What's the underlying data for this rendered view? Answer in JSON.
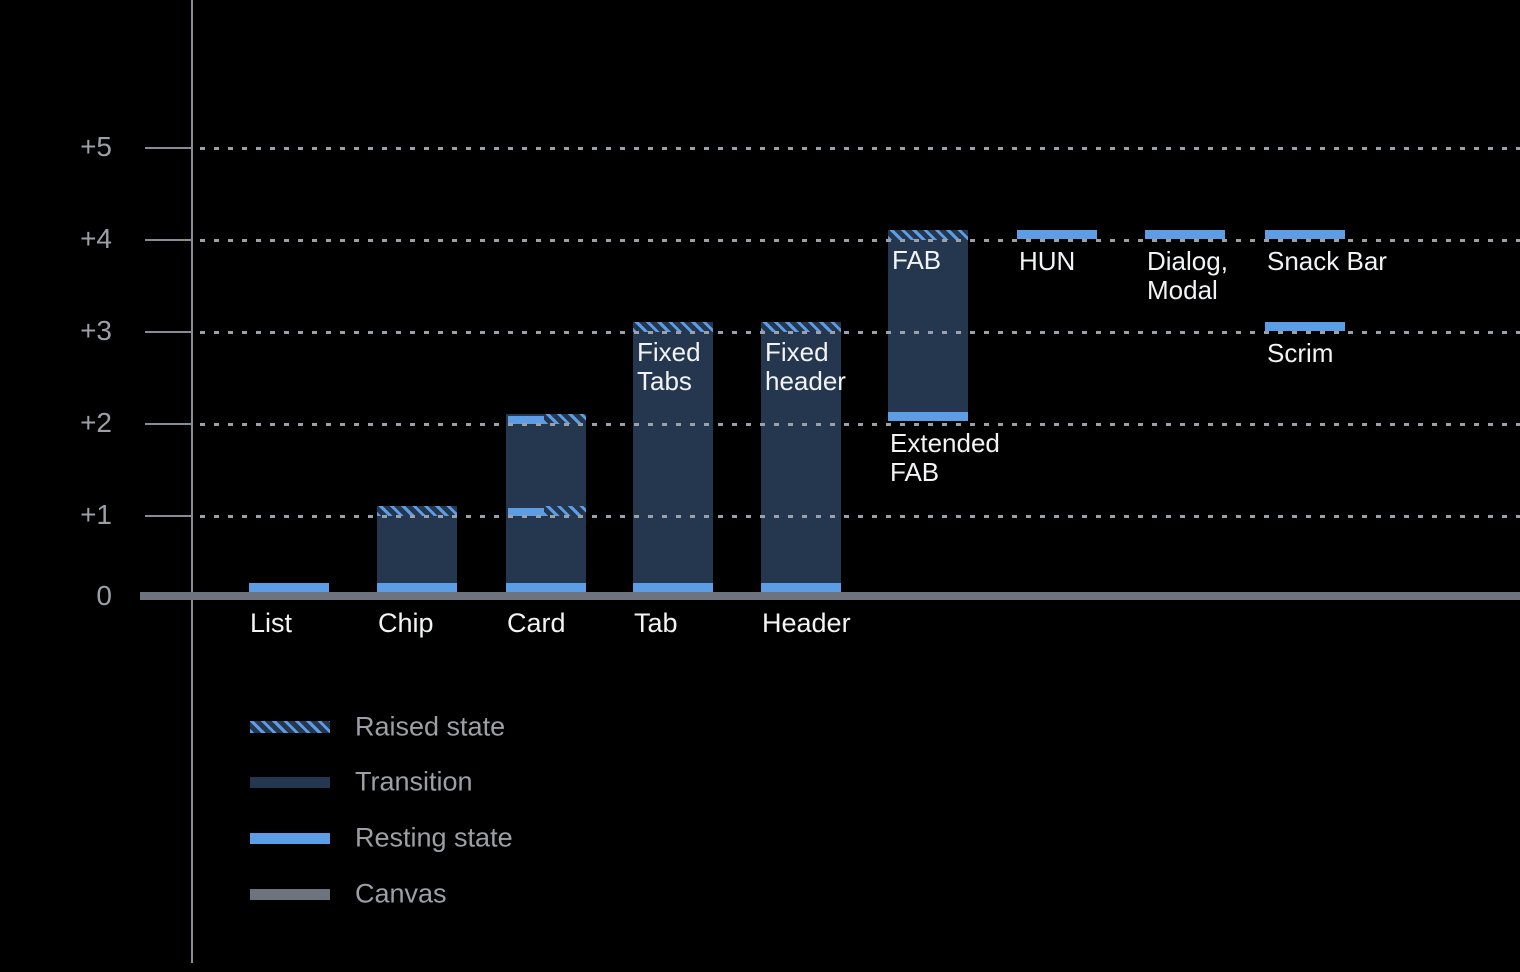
{
  "chart_data": {
    "type": "bar",
    "title": "",
    "description": "Material-style elevation chart: components vs elevation level, dark theme",
    "yticks": [
      "+5",
      "+4",
      "+3",
      "+2",
      "+1",
      "0"
    ],
    "ytick_values": [
      5,
      4,
      3,
      2,
      1,
      0
    ],
    "ylim": [
      0,
      5.5
    ],
    "grid": "dotted horizontal lines at +1 through +5",
    "legend_position": "bottom-left",
    "bars": [
      {
        "id": "list",
        "axis_label": "List",
        "type": "resting-only",
        "base": 0,
        "top": 0.1
      },
      {
        "id": "chip",
        "axis_label": "Chip",
        "type": "ground",
        "base": 0,
        "top": 1.1,
        "raised_band": true
      },
      {
        "id": "card",
        "axis_label": "Card",
        "type": "ground",
        "base": 0,
        "top": 2.1,
        "raised_band": false,
        "state_bands": [
          1.1,
          2.1
        ]
      },
      {
        "id": "tab",
        "axis_label": "Tab",
        "type": "ground",
        "base": 0,
        "top": 3.1,
        "raised_band": true,
        "inner_label": [
          "Fixed",
          "Tabs"
        ]
      },
      {
        "id": "header",
        "axis_label": "Header",
        "type": "ground",
        "base": 0,
        "top": 3.1,
        "raised_band": true,
        "inner_label": [
          "Fixed",
          "header"
        ]
      },
      {
        "id": "fab",
        "type": "floating",
        "base": 2.02,
        "top": 4.1,
        "raised_band": true,
        "inner_label": [
          "FAB"
        ],
        "below_label": [
          "Extended",
          "FAB"
        ]
      },
      {
        "id": "hun",
        "type": "band",
        "base": 4.0,
        "top": 4.1,
        "below_label": [
          "HUN"
        ]
      },
      {
        "id": "dialog",
        "type": "band",
        "base": 4.0,
        "top": 4.1,
        "below_label": [
          "Dialog,",
          "Modal"
        ]
      },
      {
        "id": "snackbar",
        "type": "band",
        "base": 4.0,
        "top": 4.1,
        "below_label": [
          "Snack Bar"
        ]
      },
      {
        "id": "scrim",
        "type": "band",
        "base": 3.0,
        "top": 3.1,
        "below_label": [
          "Scrim"
        ]
      }
    ],
    "legend": [
      {
        "id": "raised",
        "label": "Raised state",
        "swatch": "hatch"
      },
      {
        "id": "transition",
        "label": "Transition",
        "swatch": "navy"
      },
      {
        "id": "resting",
        "label": "Resting state",
        "swatch": "blue"
      },
      {
        "id": "canvas",
        "label": "Canvas",
        "swatch": "gray"
      }
    ],
    "colors": {
      "background": "#000000",
      "transition": "#24374f",
      "resting": "#5d9de6",
      "canvas": "#6d747e",
      "gridline": "#9aa1a8",
      "axis": "#868d95",
      "tick_label": "#9aa0a6",
      "bar_label": "#f2f3f5",
      "legend_text": "#9aa0a6"
    }
  }
}
